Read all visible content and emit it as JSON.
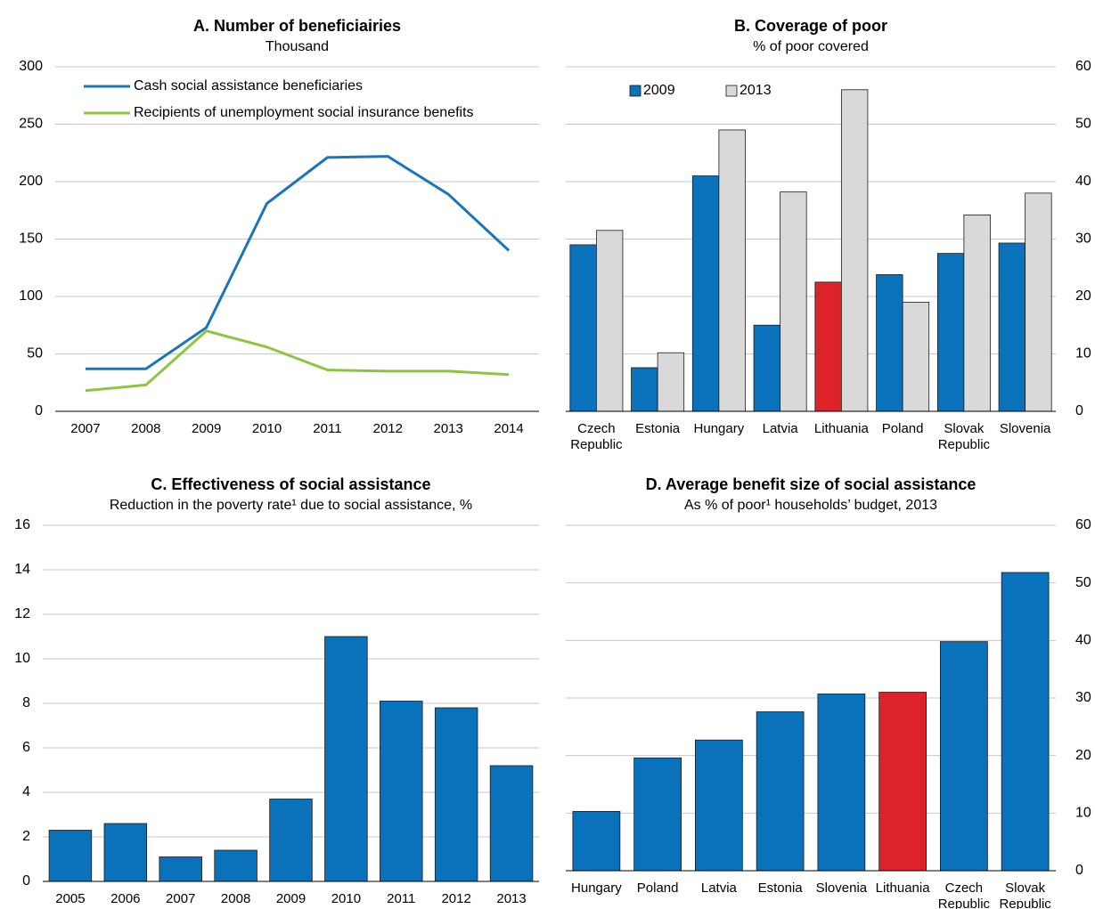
{
  "chart_data": [
    {
      "type": "line",
      "title": "A.  Number of beneficiairies",
      "subtitle": "Thousand",
      "categories": [
        "2007",
        "2008",
        "2009",
        "2010",
        "2011",
        "2012",
        "2013",
        "2014"
      ],
      "series": [
        {
          "name": "Cash social assistance beneficiaries",
          "color": "#1a75bb",
          "values": [
            37,
            37,
            73,
            181,
            221,
            222,
            189,
            140
          ]
        },
        {
          "name": "Recipients of unemployment social insurance benefits",
          "color": "#8cc63f",
          "values": [
            18,
            23,
            70,
            56,
            36,
            35,
            35,
            32
          ]
        }
      ],
      "ylim": [
        0,
        300
      ],
      "yticks": [
        0,
        50,
        100,
        150,
        200,
        250,
        300
      ],
      "grid": true,
      "axis_side": "left",
      "legend": "upper left"
    },
    {
      "type": "bar",
      "title": "B. Coverage of poor",
      "subtitle": "% of poor covered",
      "categories": [
        "Czech Republic",
        "Estonia",
        "Hungary",
        "Latvia",
        "Lithuania",
        "Poland",
        "Slovak Republic",
        "Slovenia"
      ],
      "series": [
        {
          "name": "2009",
          "color": "#0a72bb",
          "values": [
            29,
            7.6,
            41,
            15,
            22.5,
            23.8,
            27.5,
            29.3
          ]
        },
        {
          "name": "2013",
          "color": "#d9d9d9",
          "values": [
            31.5,
            10.2,
            49,
            38.2,
            56,
            19,
            34.2,
            38
          ]
        }
      ],
      "highlight": {
        "category": "Lithuania",
        "color": "#dc2329"
      },
      "ylim": [
        0,
        60
      ],
      "yticks": [
        0,
        10,
        20,
        30,
        40,
        50,
        60
      ],
      "grid": true,
      "axis_side": "right",
      "legend": "upper left"
    },
    {
      "type": "bar",
      "title": "C. Effectiveness of social assistance",
      "subtitle": "Reduction in the poverty rate¹ due to social assistance, %",
      "categories": [
        "2005",
        "2006",
        "2007",
        "2008",
        "2009",
        "2010",
        "2011",
        "2012",
        "2013"
      ],
      "series": [
        {
          "color": "#0a72bb",
          "values": [
            2.3,
            2.6,
            1.1,
            1.4,
            3.7,
            11,
            8.1,
            7.8,
            5.2
          ]
        }
      ],
      "ylim": [
        0,
        16
      ],
      "yticks": [
        0,
        2,
        4,
        6,
        8,
        10,
        12,
        14,
        16
      ],
      "grid": true,
      "axis_side": "left"
    },
    {
      "type": "bar",
      "title": "D. Average benefit size of social assistance",
      "subtitle": "As % of poor¹ households’ budget, 2013",
      "categories": [
        "Hungary",
        "Poland",
        "Latvia",
        "Estonia",
        "Slovenia",
        "Lithuania",
        "Czech Republic",
        "Slovak Republic"
      ],
      "series": [
        {
          "color": "#0a72bb",
          "values": [
            10.3,
            19.6,
            22.7,
            27.6,
            30.7,
            31,
            39.8,
            51.8
          ]
        }
      ],
      "highlight": {
        "category": "Lithuania",
        "color": "#dc2329"
      },
      "ylim": [
        0,
        60
      ],
      "yticks": [
        0,
        10,
        20,
        30,
        40,
        50,
        60
      ],
      "grid": true,
      "axis_side": "right"
    }
  ]
}
